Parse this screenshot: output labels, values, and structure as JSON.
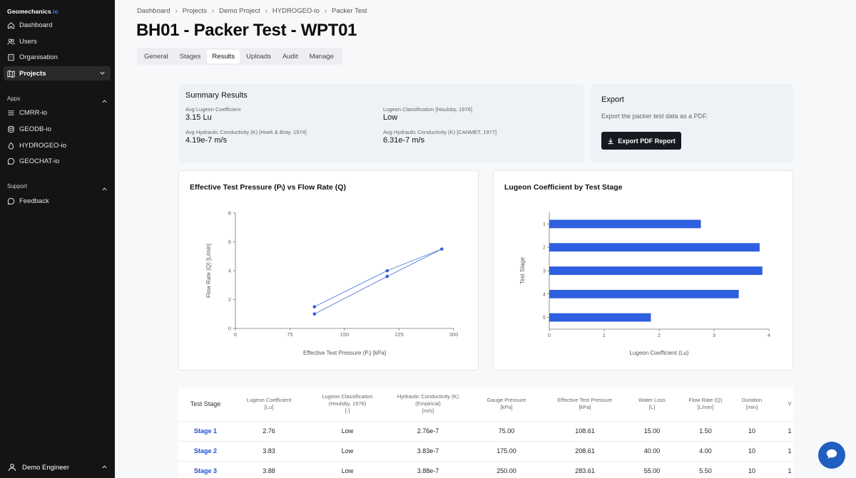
{
  "sidebar": {
    "brand": "Geomechanics",
    "brand_accent": ".io",
    "main_items": [
      {
        "label": "Dashboard",
        "icon": "home-icon"
      },
      {
        "label": "Users",
        "icon": "users-icon"
      },
      {
        "label": "Organisation",
        "icon": "building-icon"
      },
      {
        "label": "Projects",
        "icon": "map-icon"
      }
    ],
    "apps_label": "Apps",
    "apps": [
      {
        "label": "CMRR-io",
        "icon": "list-icon"
      },
      {
        "label": "GEODB-io",
        "icon": "database-icon"
      },
      {
        "label": "HYDROGEO-io",
        "icon": "droplet-icon"
      },
      {
        "label": "GEOCHAT-io",
        "icon": "chat-icon"
      }
    ],
    "support_label": "Support",
    "support": [
      {
        "label": "Feedback",
        "icon": "feedback-icon"
      }
    ],
    "user": "Demo Engineer"
  },
  "breadcrumb": [
    "Dashboard",
    "Projects",
    "Demo Project",
    "HYDROGEO-io",
    "Packer Test"
  ],
  "title": "BH01 - Packer Test - WPT01",
  "tabs": [
    "General",
    "Stages",
    "Results",
    "Uploads",
    "Audit",
    "Manage"
  ],
  "active_tab": "Results",
  "summary": {
    "title": "Summary Results",
    "avg_lugeon_label": "Avg Lugeon Coefficient",
    "avg_lugeon_value": "3.15 Lu",
    "classification_label": "Lugeon Classification [Houlsby, 1976]",
    "classification_value": "Low",
    "k_hoek_label": "Avg Hydraulic Conductivity (K) [Hoek & Bray, 1974]",
    "k_hoek_value": "4.19e-7 m/s",
    "k_canmet_label": "Avg Hydraulic Conductivity (K) [CANMET, 1977]",
    "k_canmet_value": "6.31e-7 m/s"
  },
  "export": {
    "title": "Export",
    "description": "Export the packer test data as a PDF.",
    "button": "Export PDF Report"
  },
  "chart_data": [
    {
      "type": "line",
      "title": "Effective Test Pressure (Pᵢ) vs Flow Rate (Q)",
      "xlabel": "Effective Test Pressure (Pᵢ) [kPa]",
      "ylabel": "Flow Rate (Q) [L/min]",
      "xlim": [
        0,
        300
      ],
      "ylim": [
        0,
        8
      ],
      "xticks": [
        0,
        75,
        150,
        225,
        300
      ],
      "yticks": [
        0,
        2,
        4,
        6,
        8
      ],
      "points": [
        {
          "x": 108.61,
          "y": 1.5
        },
        {
          "x": 208.61,
          "y": 4.0
        },
        {
          "x": 283.61,
          "y": 5.5
        },
        {
          "x": 208.61,
          "y": 3.6
        },
        {
          "x": 108.61,
          "y": 1.0
        }
      ],
      "grid": false
    },
    {
      "type": "bar",
      "orientation": "horizontal",
      "title": "Lugeon Coefficient by Test Stage",
      "xlabel": "Lugeon Coefficient (Lu)",
      "ylabel": "Test Stage",
      "xlim": [
        0,
        4
      ],
      "xticks": [
        0,
        1,
        2,
        3,
        4
      ],
      "categories": [
        "1",
        "2",
        "3",
        "4",
        "5"
      ],
      "values": [
        2.76,
        3.83,
        3.88,
        3.45,
        1.85
      ],
      "color": "#2e5fe0",
      "grid": false
    }
  ],
  "table": {
    "headers": [
      [
        "Test Stage"
      ],
      [
        "Lugeon Coefficient",
        "[Lu]"
      ],
      [
        "Lugeon Classification",
        "(Houlsby, 1976)",
        "[-]"
      ],
      [
        "Hydraulic Conductivity (K)",
        "(Empirical)",
        "[m/s]"
      ],
      [
        "Gauge Pressure",
        "[kPa]"
      ],
      [
        "Effective Test Pressure",
        "[kPa]"
      ],
      [
        "Water Loss",
        "[L]"
      ],
      [
        "Flow Rate (Q)",
        "[L/min]"
      ],
      [
        "Duration",
        "[min]"
      ],
      [
        "V"
      ]
    ],
    "rows": [
      [
        "Stage 1",
        "2.76",
        "Low",
        "2.76e-7",
        "75.00",
        "108.61",
        "15.00",
        "1.50",
        "10",
        "1"
      ],
      [
        "Stage 2",
        "3.83",
        "Low",
        "3.83e-7",
        "175.00",
        "208.61",
        "40.00",
        "4.00",
        "10",
        "1"
      ],
      [
        "Stage 3",
        "3.88",
        "Low",
        "3.88e-7",
        "250.00",
        "283.61",
        "55.00",
        "5.50",
        "10",
        "1"
      ]
    ]
  }
}
